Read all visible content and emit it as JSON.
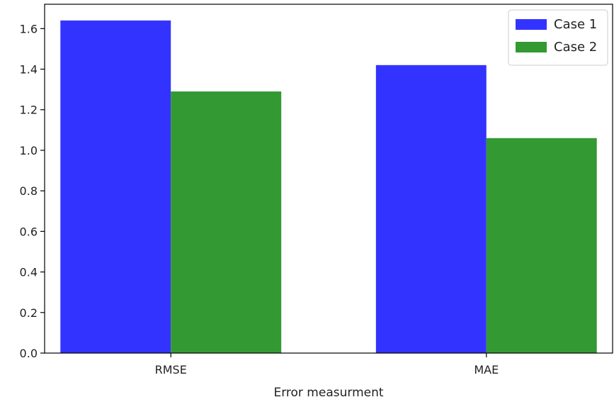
{
  "chart_data": {
    "type": "bar",
    "categories": [
      "RMSE",
      "MAE"
    ],
    "series": [
      {
        "name": "Case 1",
        "values": [
          1.64,
          1.42
        ],
        "color": "#3333ff"
      },
      {
        "name": "Case 2",
        "values": [
          1.29,
          1.06
        ],
        "color": "#339933"
      }
    ],
    "title": "",
    "xlabel": "Error measurment",
    "ylabel": "",
    "ylim": [
      0,
      1.72
    ],
    "yticks": [
      0.0,
      0.2,
      0.4,
      0.6,
      0.8,
      1.0,
      1.2,
      1.4,
      1.6
    ],
    "ytick_labels": [
      "0.0",
      "0.2",
      "0.4",
      "0.6",
      "0.8",
      "1.0",
      "1.2",
      "1.4",
      "1.6"
    ],
    "grid": false,
    "legend_position": "top-right"
  }
}
